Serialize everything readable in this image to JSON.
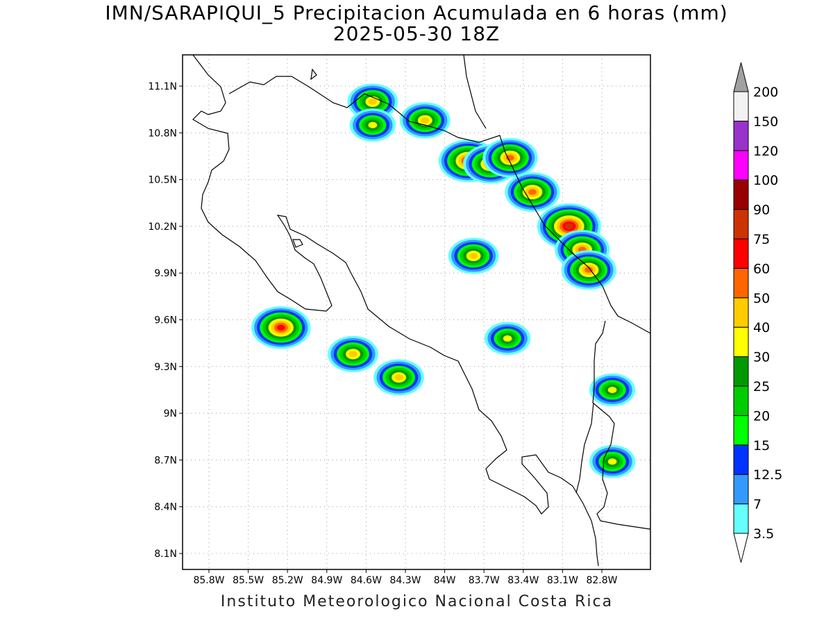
{
  "title": "IMN/SARAPIQUI_5 Precipitacion Acumulada en 6 horas (mm)",
  "subtitle": "2025-05-30 18Z",
  "footer": "Instituto Meteorologico Nacional Costa Rica",
  "map": {
    "lon_range": [
      -86.0,
      -83.0
    ],
    "lat_range": [
      8.0,
      11.2
    ],
    "lon_ticks": [
      "85.8W",
      "85.5W",
      "85.2W",
      "84.9W",
      "84.6W",
      "84.3W",
      "84W",
      "83.7W",
      "83.4W",
      "83.1W",
      "82.8W"
    ],
    "lat_ticks": [
      "11.1N",
      "10.8N",
      "10.5N",
      "10.2N",
      "9.9N",
      "9.6N",
      "9.3N",
      "9N",
      "8.7N",
      "8.4N",
      "8.1N"
    ]
  },
  "colorbar": {
    "labels": [
      "3.5",
      "7",
      "12.5",
      "15",
      "20",
      "25",
      "30",
      "40",
      "50",
      "60",
      "75",
      "90",
      "100",
      "120",
      "150",
      "200"
    ],
    "colors": [
      "#66ffff",
      "#3399ff",
      "#0033ff",
      "#00ff00",
      "#00cc00",
      "#009900",
      "#ffff00",
      "#ffcc00",
      "#ff6600",
      "#ff0000",
      "#cc3300",
      "#990000",
      "#ff00ff",
      "#9933cc",
      "#f2f2f2",
      "#a0a0a0"
    ]
  },
  "chart_data": {
    "type": "heatmap",
    "variable": "Precipitacion Acumulada en 6 horas (mm)",
    "levels": [
      3.5,
      7,
      12.5,
      15,
      20,
      25,
      30,
      40,
      50,
      60,
      75,
      90,
      100,
      120,
      150,
      200
    ],
    "lon_ticks": [
      -85.8,
      -85.5,
      -85.2,
      -84.9,
      -84.6,
      -84.3,
      -84.0,
      -83.7,
      -83.4,
      -83.1,
      -82.8
    ],
    "lat_ticks": [
      11.1,
      10.8,
      10.5,
      10.2,
      9.9,
      9.6,
      9.3,
      9.0,
      8.7,
      8.4,
      8.1
    ],
    "cells": [
      {
        "lon": -84.55,
        "lat": 11.0,
        "max": 40
      },
      {
        "lon": -84.55,
        "lat": 10.85,
        "max": 30
      },
      {
        "lon": -84.15,
        "lat": 10.88,
        "max": 40
      },
      {
        "lon": -83.82,
        "lat": 10.62,
        "max": 60
      },
      {
        "lon": -83.65,
        "lat": 10.6,
        "max": 50
      },
      {
        "lon": -83.5,
        "lat": 10.64,
        "max": 50
      },
      {
        "lon": -83.33,
        "lat": 10.42,
        "max": 50
      },
      {
        "lon": -83.05,
        "lat": 10.2,
        "max": 75
      },
      {
        "lon": -82.95,
        "lat": 10.05,
        "max": 50
      },
      {
        "lon": -82.9,
        "lat": 9.92,
        "max": 50
      },
      {
        "lon": -85.25,
        "lat": 9.55,
        "max": 60
      },
      {
        "lon": -84.35,
        "lat": 9.23,
        "max": 40
      },
      {
        "lon": -84.7,
        "lat": 9.38,
        "max": 40
      },
      {
        "lon": -83.78,
        "lat": 10.01,
        "max": 40
      },
      {
        "lon": -83.52,
        "lat": 9.48,
        "max": 30
      },
      {
        "lon": -82.72,
        "lat": 9.15,
        "max": 30
      },
      {
        "lon": -82.72,
        "lat": 8.69,
        "max": 30
      }
    ]
  }
}
